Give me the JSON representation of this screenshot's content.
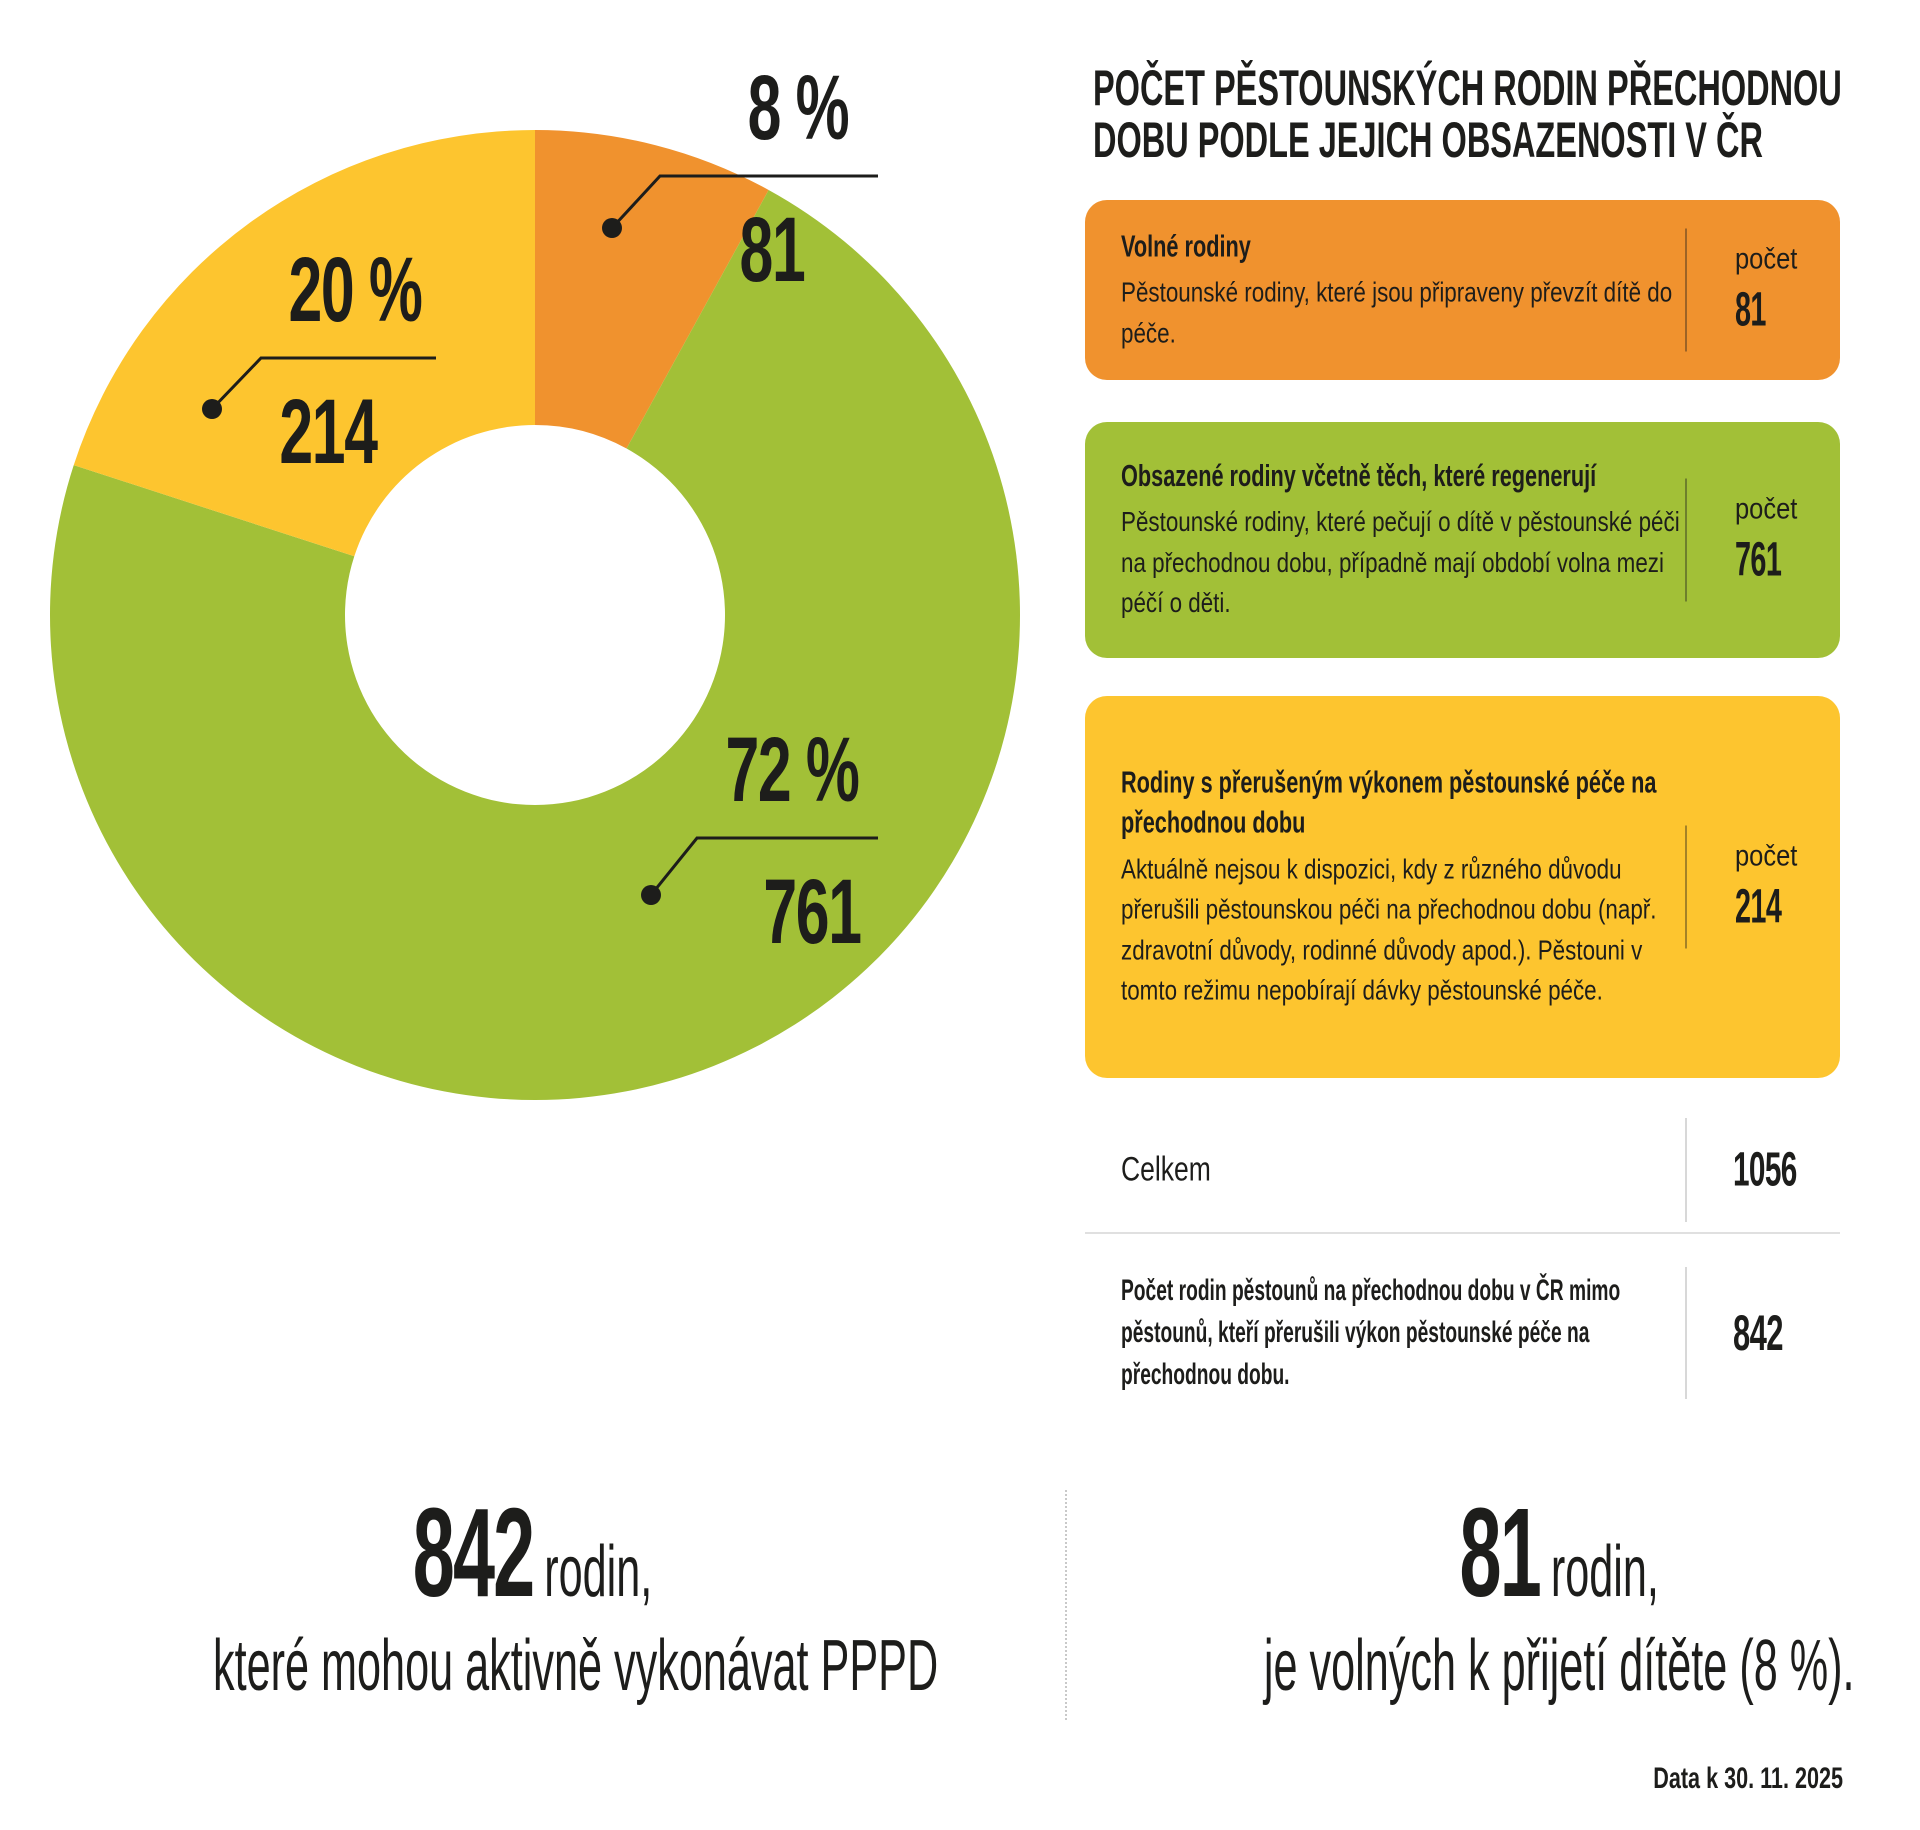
{
  "title": {
    "line1": "POČET PĚSTOUNSKÝCH RODIN PŘECHODNOU",
    "line2": "DOBU PODLE JEJICH OBSAZENOSTI V ČR"
  },
  "colors": {
    "orange": "#F0922E",
    "green": "#A2C037",
    "yellow": "#FDC52F",
    "ink": "#1D1D1B",
    "divider_gray": "#D8D8D8"
  },
  "chart_data": {
    "type": "pie",
    "donut": true,
    "title": "Počet pěstounských rodin přechodnou dobu podle jejich obsazenosti v ČR",
    "start_angle_deg_from_top": 0,
    "direction": "clockwise",
    "total": 1056,
    "segments": [
      {
        "name": "Volné rodiny",
        "percent": 8,
        "count": 81,
        "percent_label": "8 %",
        "count_label": "81",
        "color": "#F0922E"
      },
      {
        "name": "Obsazené rodiny včetně těch, které regenerují",
        "percent": 72,
        "count": 761,
        "percent_label": "72 %",
        "count_label": "761",
        "color": "#A2C037"
      },
      {
        "name": "Rodiny s přerušeným výkonem pěstounské péče na přechodnou dobu",
        "percent": 20,
        "count": 214,
        "percent_label": "20 %",
        "count_label": "214",
        "color": "#FDC52F"
      }
    ],
    "legend_position": "right",
    "grid": false
  },
  "cards": [
    {
      "heading": "Volné rodiny",
      "body": "Pěstounské rodiny, které jsou připraveny převzít dítě do péče.",
      "pocet_label": "počet",
      "count": "81",
      "color": "#F0922E"
    },
    {
      "heading": "Obsazené rodiny včetně těch, které regenerují",
      "body": "Pěstounské rodiny, které pečují o dítě v pěstounské péči na přechodnou dobu, případně mají období volna mezi péčí o děti.",
      "pocet_label": "počet",
      "count": "761",
      "color": "#A2C037"
    },
    {
      "heading": "Rodiny s přerušeným výkonem pěstounské péče na přechodnou dobu",
      "body": "Aktuálně nejsou k dispozici, kdy z různého důvodu přerušili pěstounskou péči na přechodnou dobu (např. zdravotní důvody, rodinné důvody apod.). Pěstouni v tomto režimu nepobírají dávky pěstounské péče.",
      "pocet_label": "počet",
      "count": "214",
      "color": "#FDC52F"
    }
  ],
  "summary": {
    "total_label": "Celkem",
    "total_value": "1056",
    "note_text": "Počet rodin pěstounů na přechodnou dobu v ČR mimo pěstounů, kteří přerušili výkon pěstounské péče na přechodnou dobu.",
    "note_value": "842"
  },
  "highlights": {
    "left": {
      "number": "842",
      "suffix": "rodin,",
      "line2": "které mohou aktivně vykonávat PPPD"
    },
    "right": {
      "number": "81",
      "suffix": "rodin,",
      "line2": "je volných k přijetí dítěte (8 %)."
    }
  },
  "footer": {
    "date_note": "Data k 30. 11. 2025"
  }
}
